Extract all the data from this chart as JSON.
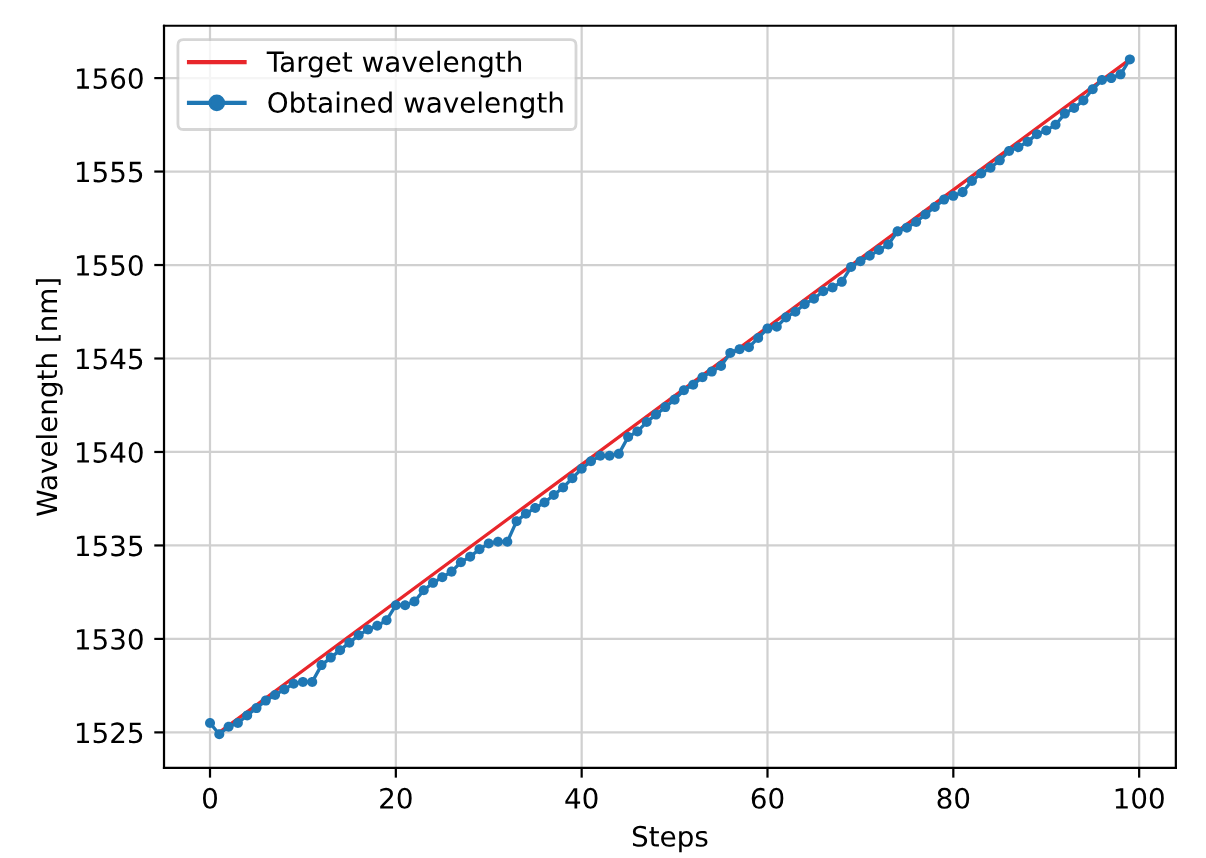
{
  "chart_data": {
    "type": "line",
    "xlabel": "Steps",
    "ylabel": "Wavelength [nm]",
    "xlim": [
      -4.95,
      103.95
    ],
    "xticks": [
      0,
      20,
      40,
      60,
      80,
      100
    ],
    "ylim": [
      1523.1,
      1562.8
    ],
    "yticks": [
      1525,
      1530,
      1535,
      1540,
      1545,
      1550,
      1555,
      1560
    ],
    "grid": true,
    "legend": "top left",
    "series": [
      {
        "name": "Target wavelength",
        "color": "#e8262b",
        "marker": "none",
        "x": [
          1,
          99
        ],
        "values": [
          1525.0,
          1561.0
        ]
      },
      {
        "name": "Obtained wavelength",
        "color": "#1f77b4",
        "marker": "circle",
        "values": [
          1525.5,
          1524.9,
          1525.3,
          1525.5,
          1525.9,
          1526.3,
          1526.7,
          1527.0,
          1527.3,
          1527.6,
          1527.7,
          1527.7,
          1528.6,
          1529.0,
          1529.4,
          1529.8,
          1530.2,
          1530.5,
          1530.7,
          1531.0,
          1531.8,
          1531.8,
          1532.0,
          1532.6,
          1533.0,
          1533.3,
          1533.6,
          1534.1,
          1534.4,
          1534.8,
          1535.1,
          1535.2,
          1535.2,
          1536.3,
          1536.7,
          1537.0,
          1537.3,
          1537.7,
          1538.1,
          1538.6,
          1539.1,
          1539.5,
          1539.8,
          1539.8,
          1539.9,
          1540.8,
          1541.1,
          1541.6,
          1542.0,
          1542.4,
          1542.8,
          1543.3,
          1543.6,
          1544.0,
          1544.3,
          1544.6,
          1545.3,
          1545.5,
          1545.6,
          1546.1,
          1546.6,
          1546.7,
          1547.2,
          1547.5,
          1547.9,
          1548.2,
          1548.6,
          1548.8,
          1549.1,
          1549.9,
          1550.2,
          1550.5,
          1550.8,
          1551.1,
          1551.8,
          1552.0,
          1552.3,
          1552.7,
          1553.1,
          1553.5,
          1553.7,
          1553.9,
          1554.5,
          1554.9,
          1555.2,
          1555.6,
          1556.1,
          1556.3,
          1556.6,
          1557.0,
          1557.2,
          1557.5,
          1558.1,
          1558.4,
          1558.8,
          1559.4,
          1559.9,
          1560.0,
          1560.2,
          1561.0
        ]
      }
    ],
    "x": [
      0,
      1,
      2,
      3,
      4,
      5,
      6,
      7,
      8,
      9,
      10,
      11,
      12,
      13,
      14,
      15,
      16,
      17,
      18,
      19,
      20,
      21,
      22,
      23,
      24,
      25,
      26,
      27,
      28,
      29,
      30,
      31,
      32,
      33,
      34,
      35,
      36,
      37,
      38,
      39,
      40,
      41,
      42,
      43,
      44,
      45,
      46,
      47,
      48,
      49,
      50,
      51,
      52,
      53,
      54,
      55,
      56,
      57,
      58,
      59,
      60,
      61,
      62,
      63,
      64,
      65,
      66,
      67,
      68,
      69,
      70,
      71,
      72,
      73,
      74,
      75,
      76,
      77,
      78,
      79,
      80,
      81,
      82,
      83,
      84,
      85,
      86,
      87,
      88,
      89,
      90,
      91,
      92,
      93,
      94,
      95,
      96,
      97,
      98,
      99
    ]
  }
}
